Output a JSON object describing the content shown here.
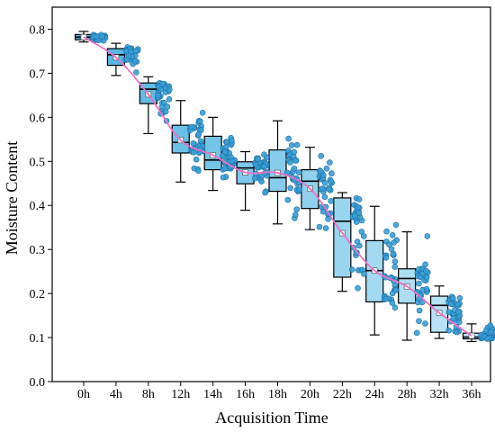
{
  "chart_data": {
    "type": "box",
    "xlabel": "Acquisition Time",
    "ylabel": "Moisture Content",
    "categories": [
      "0h",
      "4h",
      "8h",
      "12h",
      "14h",
      "16h",
      "18h",
      "20h",
      "22h",
      "24h",
      "28h",
      "32h",
      "36h"
    ],
    "ylim": [
      0.0,
      0.85
    ],
    "yticks": [
      0.0,
      0.1,
      0.2,
      0.3,
      0.4,
      0.5,
      0.6,
      0.7,
      0.8
    ],
    "yticklabels": [
      "0.0",
      "0.1",
      "0.2",
      "0.3",
      "0.4",
      "0.5",
      "0.6",
      "0.7",
      "0.8"
    ],
    "grid": false,
    "boxes": [
      {
        "category": "0h",
        "min": 0.771,
        "q1": 0.776,
        "median": 0.782,
        "q3": 0.788,
        "max": 0.795,
        "mean": 0.782
      },
      {
        "category": "4h",
        "min": 0.695,
        "q1": 0.718,
        "median": 0.742,
        "q3": 0.756,
        "max": 0.768,
        "mean": 0.736
      },
      {
        "category": "8h",
        "min": 0.563,
        "q1": 0.631,
        "median": 0.664,
        "q3": 0.678,
        "max": 0.692,
        "mean": 0.652
      },
      {
        "category": "12h",
        "min": 0.453,
        "q1": 0.519,
        "median": 0.543,
        "q3": 0.582,
        "max": 0.638,
        "mean": 0.548
      },
      {
        "category": "14h",
        "min": 0.434,
        "q1": 0.481,
        "median": 0.503,
        "q3": 0.557,
        "max": 0.6,
        "mean": 0.514
      },
      {
        "category": "16h",
        "min": 0.389,
        "q1": 0.449,
        "median": 0.485,
        "q3": 0.499,
        "max": 0.522,
        "mean": 0.475
      },
      {
        "category": "18h",
        "min": 0.358,
        "q1": 0.432,
        "median": 0.463,
        "q3": 0.526,
        "max": 0.592,
        "mean": 0.474
      },
      {
        "category": "20h",
        "min": 0.345,
        "q1": 0.393,
        "median": 0.455,
        "q3": 0.481,
        "max": 0.532,
        "mean": 0.438
      },
      {
        "category": "22h",
        "min": 0.205,
        "q1": 0.237,
        "median": 0.364,
        "q3": 0.417,
        "max": 0.429,
        "mean": 0.337
      },
      {
        "category": "24h",
        "min": 0.106,
        "q1": 0.181,
        "median": 0.252,
        "q3": 0.32,
        "max": 0.398,
        "mean": 0.252
      },
      {
        "category": "28h",
        "min": 0.094,
        "q1": 0.178,
        "median": 0.234,
        "q3": 0.256,
        "max": 0.34,
        "mean": 0.216
      },
      {
        "category": "32h",
        "min": 0.098,
        "q1": 0.112,
        "median": 0.173,
        "q3": 0.194,
        "max": 0.217,
        "mean": 0.156
      },
      {
        "category": "36h",
        "min": 0.091,
        "q1": 0.097,
        "median": 0.101,
        "q3": 0.11,
        "max": 0.131,
        "mean": 0.104
      }
    ],
    "mean_line": [
      0.782,
      0.736,
      0.652,
      0.548,
      0.514,
      0.475,
      0.474,
      0.438,
      0.337,
      0.252,
      0.216,
      0.156,
      0.104
    ],
    "colors": {
      "box_fill_dark": "#4fb3e0",
      "box_fill_light": "#bfe6f6",
      "box_stroke": "#000000",
      "point_fill": "#3a9fd6",
      "point_stroke": "#1d6fa8",
      "mean_line": "#ee6fc7",
      "axis": "#000000"
    }
  }
}
